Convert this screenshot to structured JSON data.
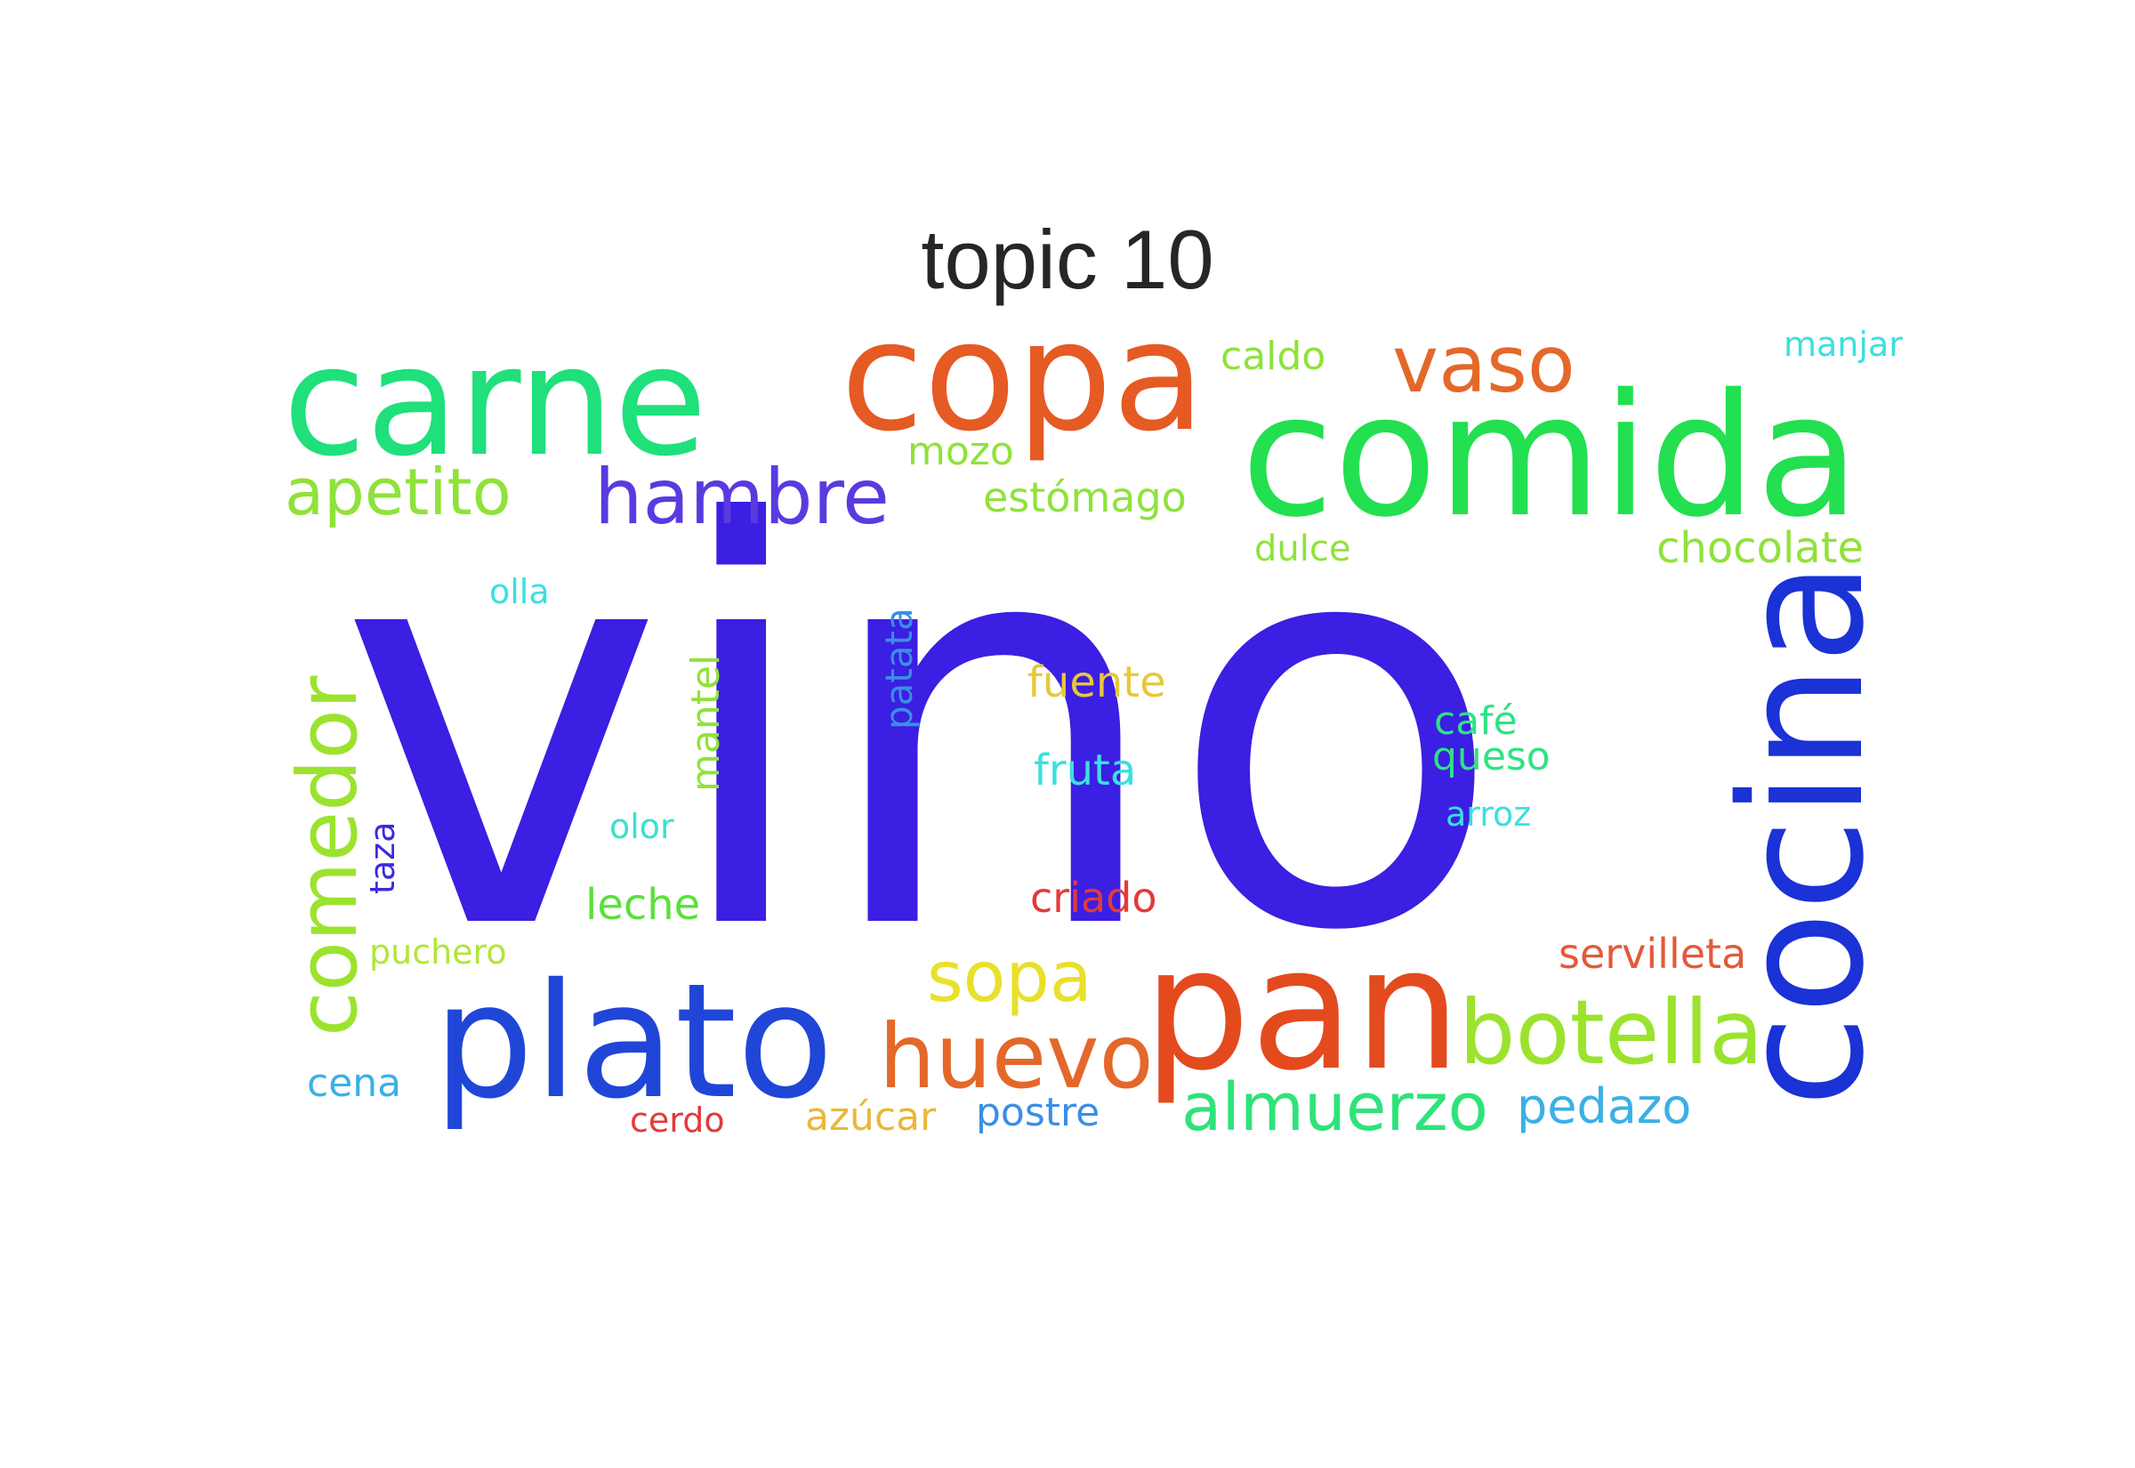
{
  "title": "topic 10",
  "words": [
    {
      "text": "vino",
      "color": "#3b1fe2"
    },
    {
      "text": "comida",
      "color": "#22e04f"
    },
    {
      "text": "carne",
      "color": "#1fe07b"
    },
    {
      "text": "copa",
      "color": "#e65a24"
    },
    {
      "text": "pan",
      "color": "#e34a1e"
    },
    {
      "text": "plato",
      "color": "#2046d8"
    },
    {
      "text": "cocina",
      "color": "#1a32d6"
    },
    {
      "text": "botella",
      "color": "#9be32e"
    },
    {
      "text": "comedor",
      "color": "#9be32e"
    },
    {
      "text": "huevo",
      "color": "#e3682a"
    },
    {
      "text": "almuerzo",
      "color": "#2ee37a"
    },
    {
      "text": "vaso",
      "color": "#e3682a"
    },
    {
      "text": "hambre",
      "color": "#5a3ae0"
    },
    {
      "text": "apetito",
      "color": "#8fe23a"
    },
    {
      "text": "sopa",
      "color": "#e8e02a"
    },
    {
      "text": "pedazo",
      "color": "#3ab0e6"
    },
    {
      "text": "chocolate",
      "color": "#8fe23a"
    },
    {
      "text": "servilleta",
      "color": "#e35a3a"
    },
    {
      "text": "estómago",
      "color": "#8fe23a"
    },
    {
      "text": "fuente",
      "color": "#e8c83a"
    },
    {
      "text": "fruta",
      "color": "#3ae0e0"
    },
    {
      "text": "queso",
      "color": "#2ee384"
    },
    {
      "text": "criado",
      "color": "#e33a3a"
    },
    {
      "text": "leche",
      "color": "#5ae03a"
    },
    {
      "text": "mantel",
      "color": "#8fe23a"
    },
    {
      "text": "patata",
      "color": "#3a8ee6"
    },
    {
      "text": "caldo",
      "color": "#8fe23a"
    },
    {
      "text": "mozo",
      "color": "#8fe23a"
    },
    {
      "text": "manjar",
      "color": "#3ae0e0"
    },
    {
      "text": "dulce",
      "color": "#8fe23a"
    },
    {
      "text": "café",
      "color": "#2ee384"
    },
    {
      "text": "arroz",
      "color": "#3ae0e0"
    },
    {
      "text": "olla",
      "color": "#3ae0e0"
    },
    {
      "text": "olor",
      "color": "#3ae0d0"
    },
    {
      "text": "taza",
      "color": "#3a2ae0"
    },
    {
      "text": "puchero",
      "color": "#b0e63a"
    },
    {
      "text": "cena",
      "color": "#3ab0e6"
    },
    {
      "text": "cerdo",
      "color": "#e33a3a"
    },
    {
      "text": "azúcar",
      "color": "#e8b83a"
    },
    {
      "text": "postre",
      "color": "#3a8ee6"
    }
  ]
}
